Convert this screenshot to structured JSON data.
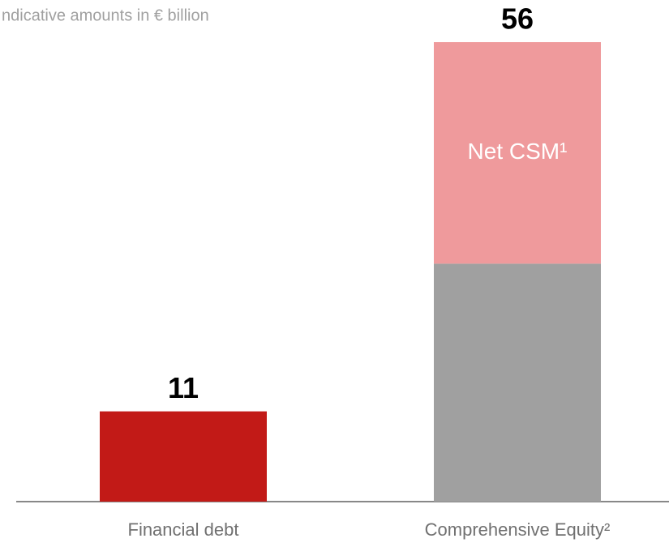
{
  "chart_data": {
    "type": "bar",
    "stacked": true,
    "subtitle": "ndicative amounts in € billion",
    "categories": [
      "Financial debt",
      "Comprehensive Equity²"
    ],
    "series": [
      {
        "color": "#c21a17",
        "values": [
          11,
          null
        ]
      },
      {
        "color": "#a0a0a0",
        "values": [
          null,
          29
        ]
      },
      {
        "name": "Net CSM¹",
        "color": "#ef9a9c",
        "values": [
          null,
          27
        ]
      }
    ],
    "totals": [
      11,
      56
    ],
    "ylim": [
      0,
      56
    ]
  }
}
